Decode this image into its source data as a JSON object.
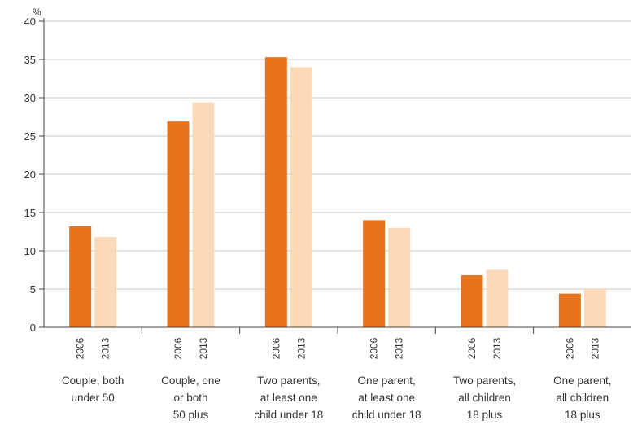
{
  "chart_data": {
    "type": "bar",
    "title": "",
    "xlabel": "",
    "ylabel": "%",
    "ylim": [
      0,
      40
    ],
    "yticks": [
      0,
      5,
      10,
      15,
      20,
      25,
      30,
      35,
      40
    ],
    "grid": true,
    "categories": [
      [
        "Couple, both",
        "under 50"
      ],
      [
        "Couple, one",
        "or both",
        "50 plus"
      ],
      [
        "Two parents,",
        "at least one",
        "child under 18"
      ],
      [
        "One parent,",
        "at least one",
        "child under 18"
      ],
      [
        "Two parents,",
        "all children",
        "18 plus"
      ],
      [
        "One parent,",
        "all children",
        "18 plus"
      ]
    ],
    "series": [
      {
        "name": "2006",
        "color": "#e8731c",
        "values": [
          13.2,
          26.9,
          35.3,
          14.0,
          6.8,
          4.4
        ]
      },
      {
        "name": "2013",
        "color": "#fcd9b8",
        "values": [
          11.8,
          29.4,
          34.0,
          13.0,
          7.5,
          5.0
        ]
      }
    ]
  }
}
